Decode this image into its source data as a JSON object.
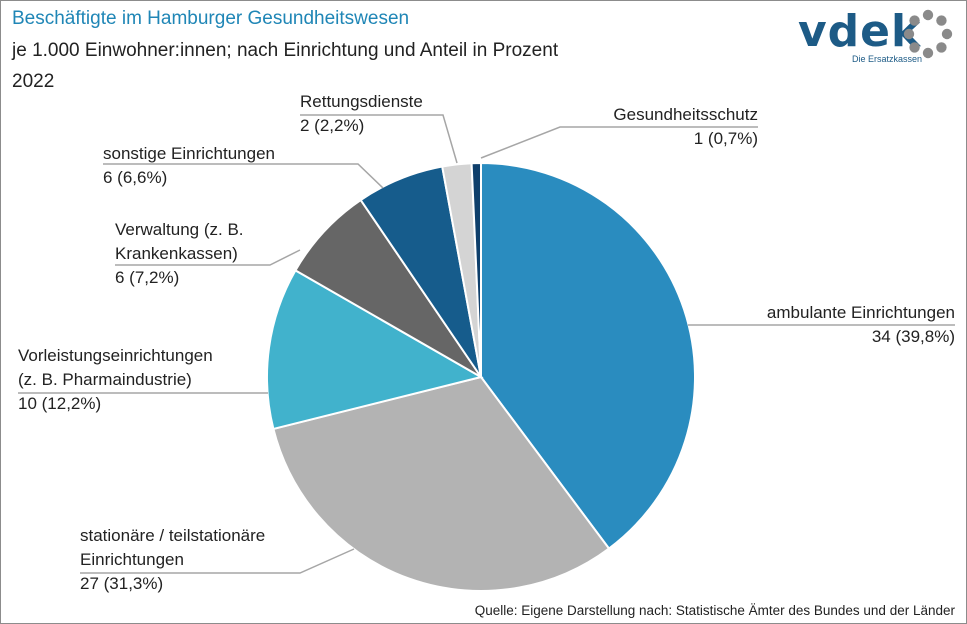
{
  "header": {
    "title": "Beschäftigte im Hamburger Gesundheitswesen",
    "subtitle": "je 1.000 Einwohner:innen; nach Einrichtung und Anteil in Prozent",
    "year": "2022"
  },
  "logo": {
    "word": "vdek",
    "tagline": "Die Ersatzkassen"
  },
  "source": "Quelle: Eigene Darstellung nach: Statistische Ämter des Bundes und der Länder",
  "chart_data": {
    "type": "pie",
    "title": "Beschäftigte im Hamburger Gesundheitswesen",
    "start_angle_deg": 90,
    "direction": "clockwise",
    "slices": [
      {
        "category": "ambulante Einrichtungen",
        "value": 34,
        "percent": 39.8,
        "color": "#2a8cbf",
        "label_lines": [
          "ambulante Einrichtungen",
          "34 (39,8%)"
        ]
      },
      {
        "category": "stationäre / teilstationäre Einrichtungen",
        "value": 27,
        "percent": 31.3,
        "color": "#b3b3b3",
        "label_lines": [
          "stationäre / teilstationäre",
          "Einrichtungen",
          "27 (31,3%)"
        ]
      },
      {
        "category": "Vorleistungseinrichtungen (z. B. Pharmaindustrie)",
        "value": 10,
        "percent": 12.2,
        "color": "#41b2cc",
        "label_lines": [
          "Vorleistungseinrichtungen",
          "(z. B. Pharmaindustrie)",
          "10 (12,2%)"
        ]
      },
      {
        "category": "Verwaltung (z. B. Krankenkassen)",
        "value": 6,
        "percent": 7.2,
        "color": "#666666",
        "label_lines": [
          "Verwaltung (z. B.",
          "Krankenkassen)",
          "6 (7,2%)"
        ]
      },
      {
        "category": "sonstige Einrichtungen",
        "value": 6,
        "percent": 6.6,
        "color": "#165c8c",
        "label_lines": [
          "sonstige Einrichtungen",
          "6 (6,6%)"
        ]
      },
      {
        "category": "Rettungsdienste",
        "value": 2,
        "percent": 2.2,
        "color": "#d4d4d4",
        "label_lines": [
          "Rettungsdienste",
          "2 (2,2%)"
        ]
      },
      {
        "category": "Gesundheitsschutz",
        "value": 1,
        "percent": 0.7,
        "color": "#0e3f6b",
        "label_lines": [
          "Gesundheitsschutz",
          "1 (0,7%)"
        ]
      }
    ]
  }
}
